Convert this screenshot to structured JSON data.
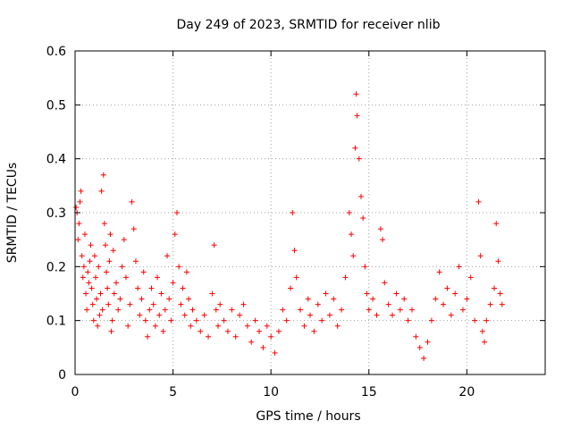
{
  "chart_data": {
    "type": "scatter",
    "title": "Day 249 of 2023, SRMTID for receiver nlib",
    "xlabel": "GPS time / hours",
    "ylabel": "SRMTID / TECUs",
    "xlim": [
      0,
      24
    ],
    "ylim": [
      0,
      0.6
    ],
    "grid": true,
    "marker": "+",
    "series_color": "#ff0000",
    "x_ticks": [
      {
        "value": 0,
        "label": "0"
      },
      {
        "value": 5,
        "label": "5"
      },
      {
        "value": 10,
        "label": "10"
      },
      {
        "value": 15,
        "label": "15"
      },
      {
        "value": 20,
        "label": "20"
      }
    ],
    "y_ticks": [
      {
        "value": 0,
        "label": "0"
      },
      {
        "value": 0.1,
        "label": "0.1"
      },
      {
        "value": 0.2,
        "label": "0.2"
      },
      {
        "value": 0.3,
        "label": "0.3"
      },
      {
        "value": 0.4,
        "label": "0.4"
      },
      {
        "value": 0.5,
        "label": "0.5"
      },
      {
        "value": 0.6,
        "label": "0.6"
      }
    ],
    "series": [
      {
        "name": "SRMTID",
        "points": [
          [
            0.05,
            0.31
          ],
          [
            0.1,
            0.3
          ],
          [
            0.15,
            0.25
          ],
          [
            0.2,
            0.28
          ],
          [
            0.25,
            0.32
          ],
          [
            0.3,
            0.34
          ],
          [
            0.35,
            0.22
          ],
          [
            0.4,
            0.18
          ],
          [
            0.45,
            0.2
          ],
          [
            0.5,
            0.26
          ],
          [
            0.55,
            0.15
          ],
          [
            0.6,
            0.12
          ],
          [
            0.65,
            0.19
          ],
          [
            0.7,
            0.17
          ],
          [
            0.75,
            0.21
          ],
          [
            0.8,
            0.24
          ],
          [
            0.85,
            0.16
          ],
          [
            0.9,
            0.13
          ],
          [
            0.95,
            0.1
          ],
          [
            1.0,
            0.22
          ],
          [
            1.05,
            0.18
          ],
          [
            1.1,
            0.14
          ],
          [
            1.15,
            0.09
          ],
          [
            1.2,
            0.2
          ],
          [
            1.25,
            0.11
          ],
          [
            1.3,
            0.15
          ],
          [
            1.35,
            0.34
          ],
          [
            1.4,
            0.12
          ],
          [
            1.45,
            0.37
          ],
          [
            1.5,
            0.28
          ],
          [
            1.55,
            0.24
          ],
          [
            1.6,
            0.19
          ],
          [
            1.65,
            0.16
          ],
          [
            1.7,
            0.13
          ],
          [
            1.75,
            0.21
          ],
          [
            1.8,
            0.26
          ],
          [
            1.85,
            0.08
          ],
          [
            1.9,
            0.1
          ],
          [
            1.95,
            0.23
          ],
          [
            2.0,
            0.15
          ],
          [
            2.1,
            0.17
          ],
          [
            2.2,
            0.12
          ],
          [
            2.3,
            0.14
          ],
          [
            2.4,
            0.2
          ],
          [
            2.5,
            0.25
          ],
          [
            2.6,
            0.18
          ],
          [
            2.7,
            0.09
          ],
          [
            2.8,
            0.13
          ],
          [
            2.9,
            0.32
          ],
          [
            3.0,
            0.27
          ],
          [
            3.1,
            0.21
          ],
          [
            3.2,
            0.16
          ],
          [
            3.3,
            0.11
          ],
          [
            3.4,
            0.14
          ],
          [
            3.5,
            0.19
          ],
          [
            3.6,
            0.1
          ],
          [
            3.7,
            0.07
          ],
          [
            3.8,
            0.12
          ],
          [
            3.9,
            0.16
          ],
          [
            4.0,
            0.13
          ],
          [
            4.1,
            0.09
          ],
          [
            4.2,
            0.18
          ],
          [
            4.3,
            0.11
          ],
          [
            4.4,
            0.15
          ],
          [
            4.5,
            0.08
          ],
          [
            4.6,
            0.12
          ],
          [
            4.7,
            0.22
          ],
          [
            4.8,
            0.14
          ],
          [
            4.9,
            0.1
          ],
          [
            5.0,
            0.17
          ],
          [
            5.1,
            0.26
          ],
          [
            5.2,
            0.3
          ],
          [
            5.3,
            0.2
          ],
          [
            5.4,
            0.13
          ],
          [
            5.5,
            0.16
          ],
          [
            5.6,
            0.11
          ],
          [
            5.7,
            0.19
          ],
          [
            5.8,
            0.14
          ],
          [
            5.9,
            0.09
          ],
          [
            6.0,
            0.12
          ],
          [
            6.2,
            0.1
          ],
          [
            6.4,
            0.08
          ],
          [
            6.6,
            0.11
          ],
          [
            6.8,
            0.07
          ],
          [
            7.0,
            0.15
          ],
          [
            7.1,
            0.24
          ],
          [
            7.2,
            0.12
          ],
          [
            7.3,
            0.09
          ],
          [
            7.4,
            0.13
          ],
          [
            7.6,
            0.1
          ],
          [
            7.8,
            0.08
          ],
          [
            8.0,
            0.12
          ],
          [
            8.2,
            0.07
          ],
          [
            8.4,
            0.11
          ],
          [
            8.6,
            0.13
          ],
          [
            8.8,
            0.09
          ],
          [
            9.0,
            0.06
          ],
          [
            9.2,
            0.1
          ],
          [
            9.4,
            0.08
          ],
          [
            9.6,
            0.05
          ],
          [
            9.8,
            0.09
          ],
          [
            10.0,
            0.07
          ],
          [
            10.2,
            0.04
          ],
          [
            10.4,
            0.08
          ],
          [
            10.6,
            0.12
          ],
          [
            10.8,
            0.1
          ],
          [
            11.0,
            0.16
          ],
          [
            11.1,
            0.3
          ],
          [
            11.2,
            0.23
          ],
          [
            11.3,
            0.18
          ],
          [
            11.5,
            0.12
          ],
          [
            11.7,
            0.09
          ],
          [
            11.9,
            0.14
          ],
          [
            12.0,
            0.11
          ],
          [
            12.2,
            0.08
          ],
          [
            12.4,
            0.13
          ],
          [
            12.6,
            0.1
          ],
          [
            12.8,
            0.15
          ],
          [
            13.0,
            0.11
          ],
          [
            13.2,
            0.14
          ],
          [
            13.4,
            0.09
          ],
          [
            13.6,
            0.12
          ],
          [
            13.8,
            0.18
          ],
          [
            14.0,
            0.3
          ],
          [
            14.1,
            0.26
          ],
          [
            14.2,
            0.22
          ],
          [
            14.3,
            0.42
          ],
          [
            14.35,
            0.52
          ],
          [
            14.4,
            0.48
          ],
          [
            14.5,
            0.4
          ],
          [
            14.6,
            0.33
          ],
          [
            14.7,
            0.29
          ],
          [
            14.8,
            0.2
          ],
          [
            14.9,
            0.15
          ],
          [
            15.0,
            0.12
          ],
          [
            15.2,
            0.14
          ],
          [
            15.4,
            0.11
          ],
          [
            15.6,
            0.27
          ],
          [
            15.7,
            0.25
          ],
          [
            15.8,
            0.17
          ],
          [
            16.0,
            0.13
          ],
          [
            16.2,
            0.11
          ],
          [
            16.4,
            0.15
          ],
          [
            16.6,
            0.12
          ],
          [
            16.8,
            0.14
          ],
          [
            17.0,
            0.1
          ],
          [
            17.2,
            0.12
          ],
          [
            17.4,
            0.07
          ],
          [
            17.6,
            0.05
          ],
          [
            17.8,
            0.03
          ],
          [
            18.0,
            0.06
          ],
          [
            18.2,
            0.1
          ],
          [
            18.4,
            0.14
          ],
          [
            18.6,
            0.19
          ],
          [
            18.8,
            0.13
          ],
          [
            19.0,
            0.16
          ],
          [
            19.2,
            0.11
          ],
          [
            19.4,
            0.15
          ],
          [
            19.6,
            0.2
          ],
          [
            19.8,
            0.12
          ],
          [
            20.0,
            0.14
          ],
          [
            20.2,
            0.18
          ],
          [
            20.4,
            0.1
          ],
          [
            20.6,
            0.32
          ],
          [
            20.7,
            0.22
          ],
          [
            20.8,
            0.08
          ],
          [
            20.9,
            0.06
          ],
          [
            21.0,
            0.1
          ],
          [
            21.2,
            0.13
          ],
          [
            21.4,
            0.16
          ],
          [
            21.5,
            0.28
          ],
          [
            21.6,
            0.21
          ],
          [
            21.7,
            0.15
          ],
          [
            21.8,
            0.13
          ]
        ]
      }
    ]
  }
}
